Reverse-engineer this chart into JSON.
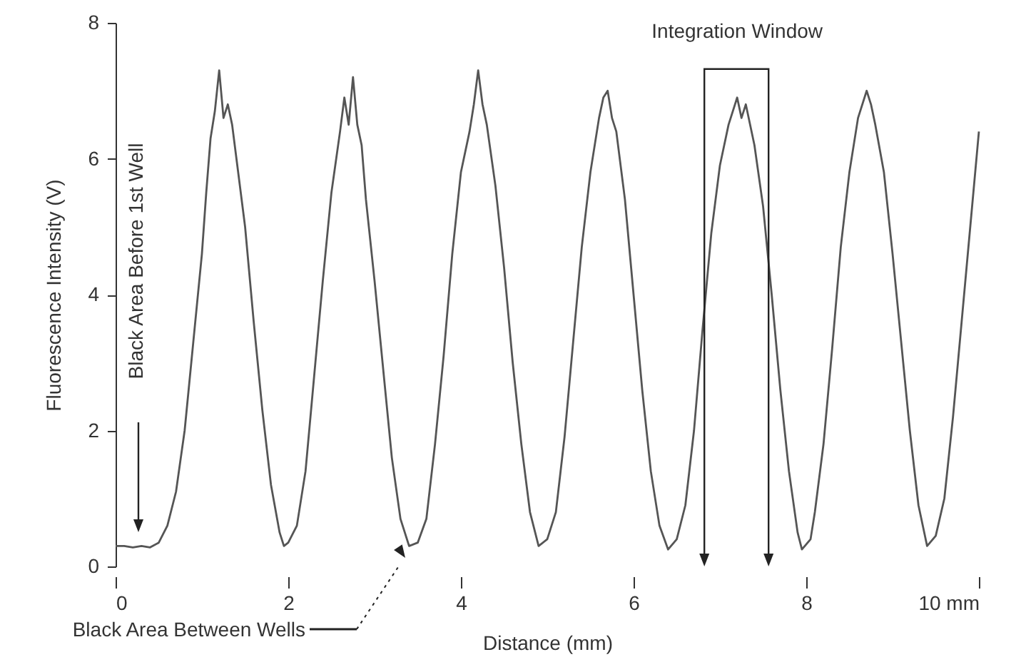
{
  "chart_data": {
    "type": "line",
    "xlabel": "Distance (mm)",
    "ylabel": "Fluorescence Intensity (V)",
    "x": [
      0,
      0.1,
      0.2,
      0.3,
      0.4,
      0.5,
      0.6,
      0.7,
      0.8,
      0.9,
      1.0,
      1.05,
      1.1,
      1.15,
      1.2,
      1.25,
      1.3,
      1.35,
      1.4,
      1.5,
      1.6,
      1.7,
      1.8,
      1.9,
      1.95,
      2.0,
      2.1,
      2.2,
      2.3,
      2.4,
      2.5,
      2.6,
      2.65,
      2.7,
      2.75,
      2.8,
      2.85,
      2.9,
      3.0,
      3.1,
      3.2,
      3.3,
      3.4,
      3.5,
      3.6,
      3.7,
      3.8,
      3.9,
      4.0,
      4.1,
      4.15,
      4.2,
      4.25,
      4.3,
      4.4,
      4.5,
      4.6,
      4.7,
      4.8,
      4.9,
      5.0,
      5.1,
      5.2,
      5.3,
      5.4,
      5.5,
      5.6,
      5.65,
      5.7,
      5.75,
      5.8,
      5.9,
      6.0,
      6.1,
      6.2,
      6.3,
      6.4,
      6.5,
      6.6,
      6.7,
      6.8,
      6.9,
      7.0,
      7.1,
      7.2,
      7.25,
      7.3,
      7.4,
      7.5,
      7.6,
      7.7,
      7.8,
      7.9,
      7.95,
      8.05,
      8.1,
      8.2,
      8.3,
      8.4,
      8.5,
      8.6,
      8.7,
      8.75,
      8.8,
      8.9,
      9.0,
      9.1,
      9.2,
      9.3,
      9.4,
      9.5,
      9.6,
      9.7,
      9.8,
      9.9,
      10.0
    ],
    "series": [
      {
        "color": "#555555",
        "values": [
          0.3,
          0.3,
          0.28,
          0.3,
          0.28,
          0.35,
          0.6,
          1.1,
          2.0,
          3.3,
          4.6,
          5.5,
          6.3,
          6.7,
          7.3,
          6.6,
          6.8,
          6.5,
          6.0,
          5.0,
          3.6,
          2.3,
          1.2,
          0.5,
          0.3,
          0.35,
          0.6,
          1.4,
          2.8,
          4.2,
          5.5,
          6.4,
          6.9,
          6.5,
          7.2,
          6.5,
          6.2,
          5.4,
          4.2,
          2.9,
          1.6,
          0.7,
          0.3,
          0.35,
          0.7,
          1.8,
          3.1,
          4.6,
          5.8,
          6.4,
          6.8,
          7.3,
          6.8,
          6.5,
          5.6,
          4.4,
          3.0,
          1.8,
          0.8,
          0.3,
          0.4,
          0.8,
          1.9,
          3.3,
          4.7,
          5.8,
          6.6,
          6.9,
          7.0,
          6.6,
          6.4,
          5.4,
          4.0,
          2.6,
          1.4,
          0.6,
          0.25,
          0.4,
          0.9,
          2.0,
          3.5,
          4.9,
          5.9,
          6.5,
          6.9,
          6.6,
          6.8,
          6.2,
          5.3,
          4.0,
          2.6,
          1.4,
          0.5,
          0.25,
          0.4,
          0.8,
          1.8,
          3.2,
          4.7,
          5.8,
          6.6,
          7.0,
          6.8,
          6.5,
          5.8,
          4.6,
          3.3,
          2.0,
          0.9,
          0.3,
          0.45,
          1.0,
          2.2,
          3.6,
          5.0,
          6.4
        ]
      }
    ],
    "xlim": [
      0,
      10
    ],
    "xticks": [
      0,
      2,
      4,
      6,
      8,
      {
        "value": 10,
        "label": "10 mm"
      }
    ],
    "ylim": [
      0,
      8
    ],
    "yticks": [
      0,
      2,
      4,
      6,
      8
    ],
    "grid": false,
    "marker": "none",
    "line_style": "solid",
    "annotations": [
      "Black Area Before 1st Well",
      "Black Area Between Wells",
      {
        "text": "Integration Window",
        "x": 7.2,
        "y": 6.9
      }
    ]
  }
}
